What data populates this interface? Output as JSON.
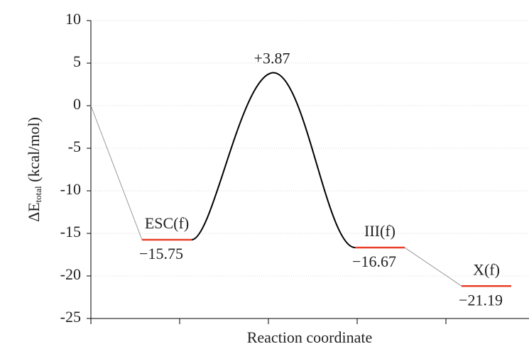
{
  "chart_data": {
    "type": "energy-profile",
    "ylabel": {
      "main": "ΔE",
      "sub": "total",
      "unit": " (kcal/mol)"
    },
    "xlabel": "Reaction coordinate",
    "categories": [
      null,
      "ESC(f)",
      null,
      "III(f)",
      "X(f)"
    ],
    "values": [
      0,
      -15.75,
      3.87,
      -16.67,
      -21.19
    ],
    "value_labels": [
      null,
      "−15.75",
      "+3.87",
      "−16.67",
      "−21.19"
    ],
    "level_color": "#e8402a",
    "curve_color": "#000000",
    "connector_color": "#999999",
    "ylim": [
      -25,
      10
    ],
    "yticks": [
      -25,
      -20,
      -15,
      -10,
      -5,
      0,
      5,
      10
    ],
    "grid": true
  }
}
